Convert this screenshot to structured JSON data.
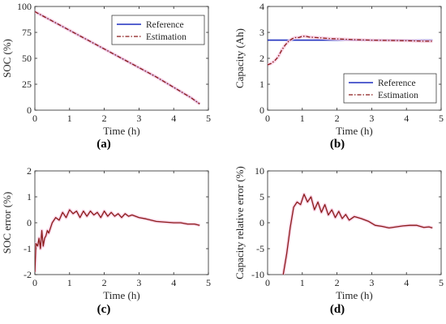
{
  "colors": {
    "reference": "#1f2fbf",
    "estimation": "#8b1a1a",
    "highlight": "#f6c9e0",
    "axis": "#262626"
  },
  "chart_data": [
    {
      "panel_label": "(a)",
      "type": "line",
      "xlabel": "Time (h)",
      "ylabel": "SOC (%)",
      "xlim": [
        0,
        5
      ],
      "ylim": [
        0,
        100
      ],
      "xticks": [
        "0",
        "1",
        "2",
        "3",
        "4",
        "5"
      ],
      "yticks": [
        "0",
        "25",
        "50",
        "75",
        "100"
      ],
      "legend": {
        "position": "top-right",
        "entries": [
          "Reference",
          "Estimation"
        ]
      },
      "series": [
        {
          "name": "Reference",
          "style": "solid",
          "x": [
            0,
            0.5,
            1,
            1.5,
            2,
            2.5,
            3,
            3.5,
            4,
            4.5,
            4.75
          ],
          "y": [
            95,
            86,
            77,
            68,
            59,
            50,
            41,
            32,
            22,
            12,
            6
          ]
        },
        {
          "name": "Estimation",
          "style": "dashdot",
          "x": [
            0,
            0.5,
            1,
            1.5,
            2,
            2.5,
            3,
            3.5,
            4,
            4.5,
            4.75
          ],
          "y": [
            95,
            86,
            77,
            68,
            59,
            50,
            41,
            32,
            22,
            12,
            6
          ]
        }
      ]
    },
    {
      "panel_label": "(b)",
      "type": "line",
      "xlabel": "Time (h)",
      "ylabel": "Capacity (Ah)",
      "xlim": [
        0,
        5
      ],
      "ylim": [
        0,
        4
      ],
      "xticks": [
        "0",
        "1",
        "2",
        "3",
        "4",
        "5"
      ],
      "yticks": [
        "0",
        "1",
        "2",
        "3",
        "4"
      ],
      "legend": {
        "position": "bottom-right",
        "entries": [
          "Reference",
          "Estimation"
        ]
      },
      "series": [
        {
          "name": "Reference",
          "style": "solid",
          "x": [
            0,
            4.75
          ],
          "y": [
            2.7,
            2.7
          ]
        },
        {
          "name": "Estimation",
          "style": "dashdot",
          "x": [
            0,
            0.1,
            0.2,
            0.3,
            0.4,
            0.5,
            0.6,
            0.7,
            0.8,
            0.9,
            1.0,
            1.1,
            1.2,
            1.4,
            1.6,
            1.8,
            2.0,
            2.5,
            3.0,
            3.5,
            4.0,
            4.5,
            4.75
          ],
          "y": [
            1.75,
            1.8,
            1.9,
            2.05,
            2.3,
            2.5,
            2.65,
            2.75,
            2.8,
            2.8,
            2.85,
            2.85,
            2.82,
            2.8,
            2.78,
            2.76,
            2.75,
            2.72,
            2.7,
            2.69,
            2.68,
            2.66,
            2.66
          ]
        }
      ]
    },
    {
      "panel_label": "(c)",
      "type": "line",
      "xlabel": "Time (h)",
      "ylabel": "SOC error (%)",
      "xlim": [
        0,
        5
      ],
      "ylim": [
        -2,
        2
      ],
      "xticks": [
        "0",
        "1",
        "2",
        "3",
        "4",
        "5"
      ],
      "yticks": [
        "-2",
        "-1",
        "0",
        "1",
        "2"
      ],
      "series": [
        {
          "name": "",
          "style": "solid",
          "x": [
            0,
            0.03,
            0.08,
            0.12,
            0.16,
            0.2,
            0.24,
            0.28,
            0.32,
            0.36,
            0.4,
            0.45,
            0.5,
            0.6,
            0.7,
            0.8,
            0.9,
            1.0,
            1.1,
            1.2,
            1.3,
            1.4,
            1.5,
            1.6,
            1.7,
            1.8,
            1.9,
            2.0,
            2.1,
            2.2,
            2.3,
            2.4,
            2.5,
            2.6,
            2.7,
            2.8,
            3.0,
            3.2,
            3.5,
            3.8,
            4.0,
            4.2,
            4.4,
            4.6,
            4.75
          ],
          "y": [
            -1.9,
            -0.8,
            -0.9,
            -0.6,
            -1.0,
            -0.3,
            -0.9,
            -0.6,
            -0.5,
            -0.3,
            -0.4,
            -0.2,
            0.0,
            0.2,
            0.1,
            0.4,
            0.2,
            0.5,
            0.35,
            0.45,
            0.2,
            0.45,
            0.25,
            0.45,
            0.3,
            0.4,
            0.2,
            0.45,
            0.25,
            0.4,
            0.25,
            0.35,
            0.2,
            0.35,
            0.25,
            0.3,
            0.2,
            0.15,
            0.05,
            0.02,
            0.0,
            0.0,
            -0.05,
            -0.05,
            -0.1
          ]
        }
      ]
    },
    {
      "panel_label": "(d)",
      "type": "line",
      "xlabel": "Time (h)",
      "ylabel": "Capacity relative error (%)",
      "xlim": [
        0,
        5
      ],
      "ylim": [
        -10,
        10
      ],
      "xticks": [
        "0",
        "1",
        "2",
        "3",
        "4",
        "5"
      ],
      "yticks": [
        "-10",
        "-5",
        "0",
        "5",
        "10"
      ],
      "series": [
        {
          "name": "",
          "style": "solid",
          "x": [
            0.45,
            0.55,
            0.65,
            0.75,
            0.85,
            0.95,
            1.05,
            1.15,
            1.25,
            1.35,
            1.45,
            1.55,
            1.65,
            1.75,
            1.85,
            1.95,
            2.05,
            2.15,
            2.25,
            2.35,
            2.5,
            2.7,
            2.9,
            3.1,
            3.3,
            3.5,
            3.7,
            3.9,
            4.1,
            4.3,
            4.5,
            4.65,
            4.75
          ],
          "y": [
            -10,
            -6,
            -1,
            3,
            4,
            3.5,
            5.5,
            4,
            5,
            2.5,
            4,
            2,
            3.5,
            1.5,
            2.5,
            1,
            2.2,
            0.8,
            1.6,
            0.5,
            1.2,
            0.8,
            0.3,
            -0.5,
            -0.7,
            -1.0,
            -0.8,
            -0.6,
            -0.5,
            -0.5,
            -0.9,
            -0.8,
            -1.0
          ]
        }
      ]
    }
  ]
}
